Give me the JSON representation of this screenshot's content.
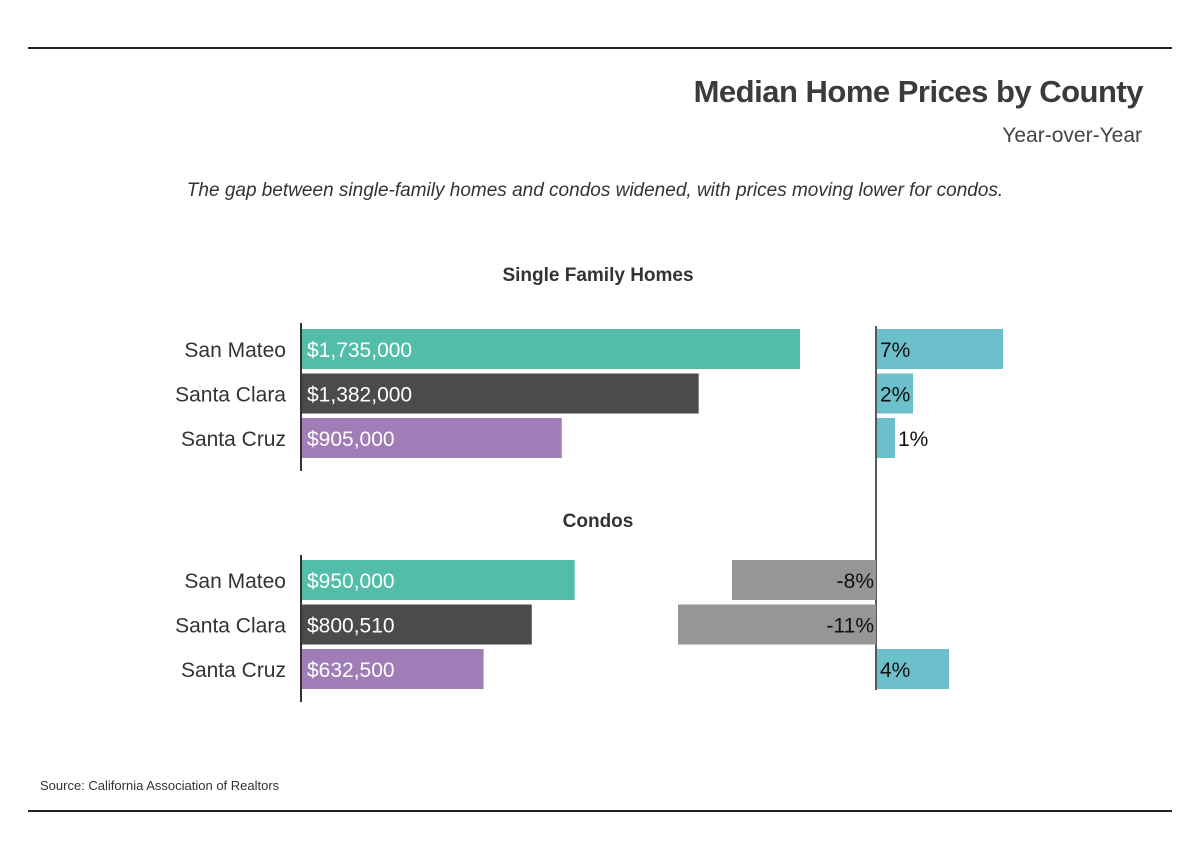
{
  "title": "Median Home Prices by County",
  "subtitle": "Year-over-Year",
  "note": "The gap between single-family homes and condos widened, with prices moving lower for condos.",
  "source": "Source:  California Association of Realtors",
  "chart_data": [
    {
      "type": "bar",
      "orientation": "horizontal",
      "section": "Single Family Homes",
      "title": "Single Family Homes",
      "categories": [
        "San Mateo",
        "Santa Clara",
        "Santa Cruz"
      ],
      "values": [
        1735000,
        1382000,
        905000
      ],
      "value_labels": [
        "$1,735,000",
        "$1,382,000",
        "$905,000"
      ],
      "colors": [
        "#52bea9",
        "#4b4b4b",
        "#a07db7"
      ]
    },
    {
      "type": "bar",
      "orientation": "horizontal",
      "section": "Single Family Homes",
      "categories": [
        "San Mateo",
        "Santa Clara",
        "Santa Cruz"
      ],
      "values": [
        7,
        2,
        1
      ],
      "value_labels": [
        "7%",
        "2%",
        "1%"
      ],
      "positive_color": "#6bc0cc",
      "negative_color": "#969696"
    },
    {
      "type": "bar",
      "orientation": "horizontal",
      "section": "Condos",
      "title": "Condos",
      "categories": [
        "San Mateo",
        "Santa Clara",
        "Santa Cruz"
      ],
      "values": [
        950000,
        800510,
        632500
      ],
      "value_labels": [
        "$950,000",
        "$800,510",
        "$632,500"
      ],
      "colors": [
        "#52bea9",
        "#4b4b4b",
        "#a07db7"
      ]
    },
    {
      "type": "bar",
      "orientation": "horizontal",
      "section": "Condos",
      "categories": [
        "San Mateo",
        "Santa Clara",
        "Santa Cruz"
      ],
      "values": [
        -8,
        -11,
        4
      ],
      "value_labels": [
        "-8%",
        "-11%",
        "4%"
      ],
      "positive_color": "#6bc0cc",
      "negative_color": "#969696"
    }
  ]
}
